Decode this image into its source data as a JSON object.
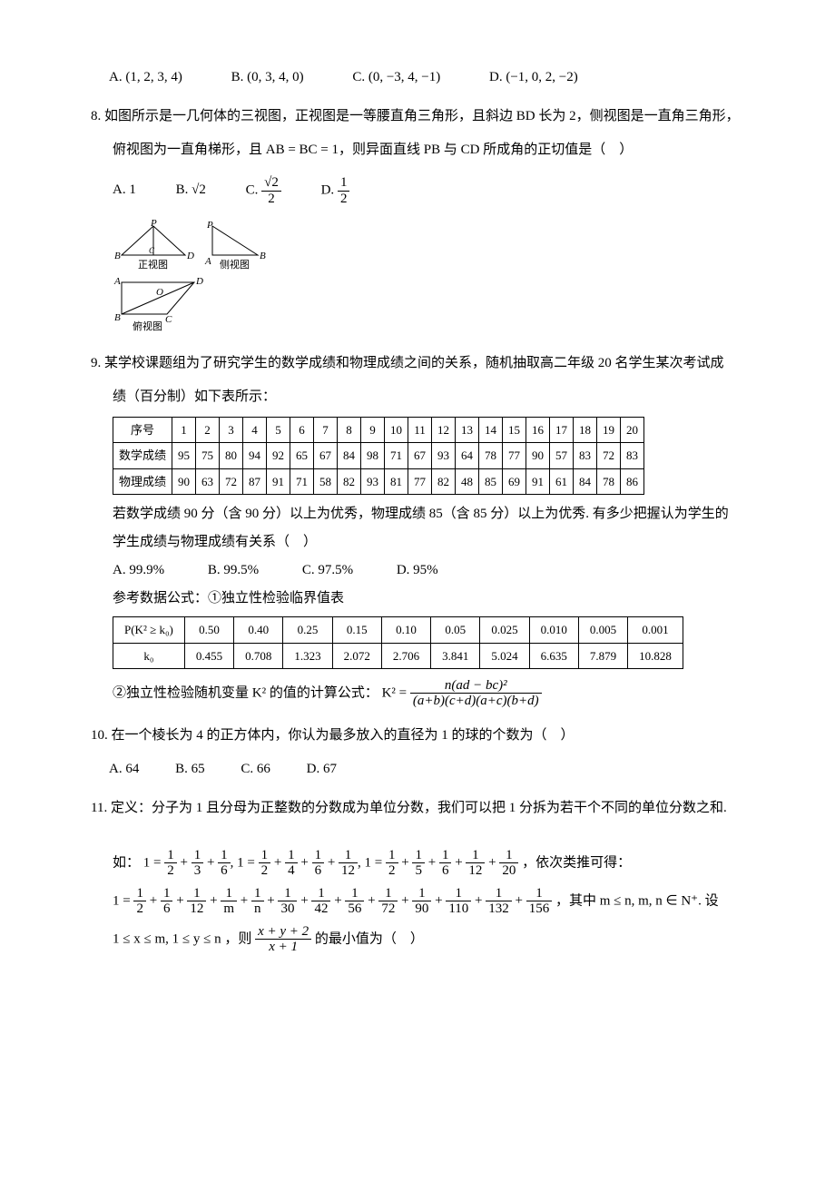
{
  "q7_opts": {
    "A": "A.  (1, 2, 3, 4)",
    "B": "B.  (0, 3, 4, 0)",
    "C": "C.   (0, −3, 4, −1)",
    "D": "D.  (−1, 0, 2, −2)"
  },
  "q8": {
    "stem1": "8. 如图所示是一几何体的三视图，正视图是一等腰直角三角形，且斜边 BD 长为 2，侧视图是一直角三角形，",
    "stem2": "俯视图为一直角梯形，且 AB = BC = 1，则异面直线 PB 与 CD 所成角的正切值是（　）",
    "A": "A.  1",
    "B_label": "B.  ",
    "B_val": "√2",
    "C_label": "C.  ",
    "C_num": "√2",
    "C_den": "2",
    "D_label": "D.  ",
    "D_num": "1",
    "D_den": "2",
    "diagram": {
      "front_label": "正视图",
      "side_label": "侧视图",
      "top_label": "俯视图",
      "P": "P",
      "B": "B",
      "A": "A",
      "C": "C",
      "D": "D",
      "O": "O"
    }
  },
  "q9": {
    "stem1": "9. 某学校课题组为了研究学生的数学成绩和物理成绩之间的关系，随机抽取高二年级 20 名学生某次考试成",
    "stem2": "绩（百分制）如下表所示：",
    "table": {
      "headers": [
        "序号",
        "1",
        "2",
        "3",
        "4",
        "5",
        "6",
        "7",
        "8",
        "9",
        "10",
        "11",
        "12",
        "13",
        "14",
        "15",
        "16",
        "17",
        "18",
        "19",
        "20"
      ],
      "row_math_label": "数学成绩",
      "row_math": [
        95,
        75,
        80,
        94,
        92,
        65,
        67,
        84,
        98,
        71,
        67,
        93,
        64,
        78,
        77,
        90,
        57,
        83,
        72,
        83
      ],
      "row_phys_label": "物理成绩",
      "row_phys": [
        90,
        63,
        72,
        87,
        91,
        71,
        58,
        82,
        93,
        81,
        77,
        82,
        48,
        85,
        69,
        91,
        61,
        84,
        78,
        86
      ]
    },
    "para1": "若数学成绩 90 分（含 90 分）以上为优秀，物理成绩 85（含 85 分）以上为优秀. 有多少把握认为学生的",
    "para2": "学生成绩与物理成绩有关系（　）",
    "opts": {
      "A": "A.  99.9%",
      "B": "B.   99.5%",
      "C": "C.  97.5%",
      "D": "D.  95%"
    },
    "ref_label": "参考数据公式：①独立性检验临界值表",
    "chi_table": {
      "row1_label": "P(K² ≥ k₀)",
      "row1": [
        "0.50",
        "0.40",
        "0.25",
        "0.15",
        "0.10",
        "0.05",
        "0.025",
        "0.010",
        "0.005",
        "0.001"
      ],
      "row2_label": "k₀",
      "row2": [
        "0.455",
        "0.708",
        "1.323",
        "2.072",
        "2.706",
        "3.841",
        "5.024",
        "6.635",
        "7.879",
        "10.828"
      ]
    },
    "formula_label": "②独立性检验随机变量 K² 的值的计算公式：",
    "formula_lhs": "K² =",
    "formula_num": "n(ad − bc)²",
    "formula_den": "(a+b)(c+d)(a+c)(b+d)"
  },
  "q10": {
    "stem": "10. 在一个棱长为 4 的正方体内，你认为最多放入的直径为 1 的球的个数为（　）",
    "opts": {
      "A": "A. 64",
      "B": "B. 65",
      "C": "C. 66",
      "D": "D. 67"
    }
  },
  "q11": {
    "stem": "11. 定义：分子为 1 且分母为正整数的分数成为单位分数，我们可以把 1 分拆为若干个不同的单位分数之和.",
    "line1_prefix": "如：",
    "eq1_terms": [
      "1",
      "2",
      "1",
      "3",
      "1",
      "6"
    ],
    "eq2_terms": [
      "1",
      "2",
      "1",
      "4",
      "1",
      "6",
      "1",
      "12"
    ],
    "eq3_terms": [
      "1",
      "2",
      "1",
      "5",
      "1",
      "6",
      "1",
      "12",
      "1",
      "20"
    ],
    "line1_suffix": "，依次类推可得：",
    "eq4_terms": [
      "1",
      "2",
      "1",
      "6",
      "1",
      "12",
      "1",
      "m",
      "1",
      "n",
      "1",
      "30",
      "1",
      "42",
      "1",
      "56",
      "1",
      "72",
      "1",
      "90",
      "1",
      "110",
      "1",
      "132",
      "1",
      "156"
    ],
    "line2_suffix": "，其中 m ≤ n, m, n ∈ N⁺. 设",
    "line3_prefix": "1 ≤ x ≤ m, 1 ≤ y ≤ n ，则 ",
    "final_frac_num": "x + y + 2",
    "final_frac_den": "x + 1",
    "line3_suffix": " 的最小值为（　）"
  }
}
